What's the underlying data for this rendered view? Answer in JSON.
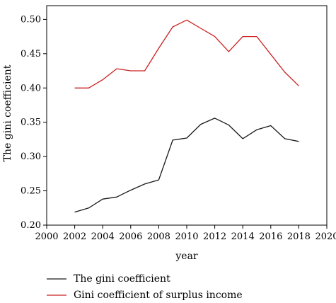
{
  "chart_data": {
    "type": "line",
    "title": "",
    "xlabel": "year",
    "ylabel": "The gini coefficient",
    "xlim": [
      2000,
      2020
    ],
    "ylim": [
      0.2,
      0.52
    ],
    "xticks": [
      2000,
      2002,
      2004,
      2006,
      2008,
      2010,
      2012,
      2014,
      2016,
      2018,
      2020
    ],
    "yticks": [
      0.2,
      0.25,
      0.3,
      0.35,
      0.4,
      0.45,
      0.5
    ],
    "ytick_labels": [
      "0.20",
      "0.25",
      "0.30",
      "0.35",
      "0.40",
      "0.45",
      "0.50"
    ],
    "grid": false,
    "legend_position": "bottom",
    "x": [
      2002,
      2003,
      2004,
      2005,
      2006,
      2007,
      2008,
      2009,
      2010,
      2011,
      2012,
      2013,
      2014,
      2015,
      2016,
      2017,
      2018
    ],
    "series": [
      {
        "name": "The gini coefficient",
        "color": "#1a1a1a",
        "values": [
          0.219,
          0.225,
          0.238,
          0.241,
          0.251,
          0.26,
          0.266,
          0.324,
          0.327,
          0.347,
          0.356,
          0.346,
          0.326,
          0.339,
          0.345,
          0.326,
          0.322
        ]
      },
      {
        "name": "Gini coefficient of surplus income",
        "color": "#cc1f1f",
        "values": [
          0.4,
          0.4,
          0.412,
          0.428,
          0.425,
          0.425,
          0.458,
          0.489,
          0.499,
          0.487,
          0.475,
          0.453,
          0.475,
          0.475,
          0.449,
          0.423,
          0.403
        ]
      }
    ]
  }
}
